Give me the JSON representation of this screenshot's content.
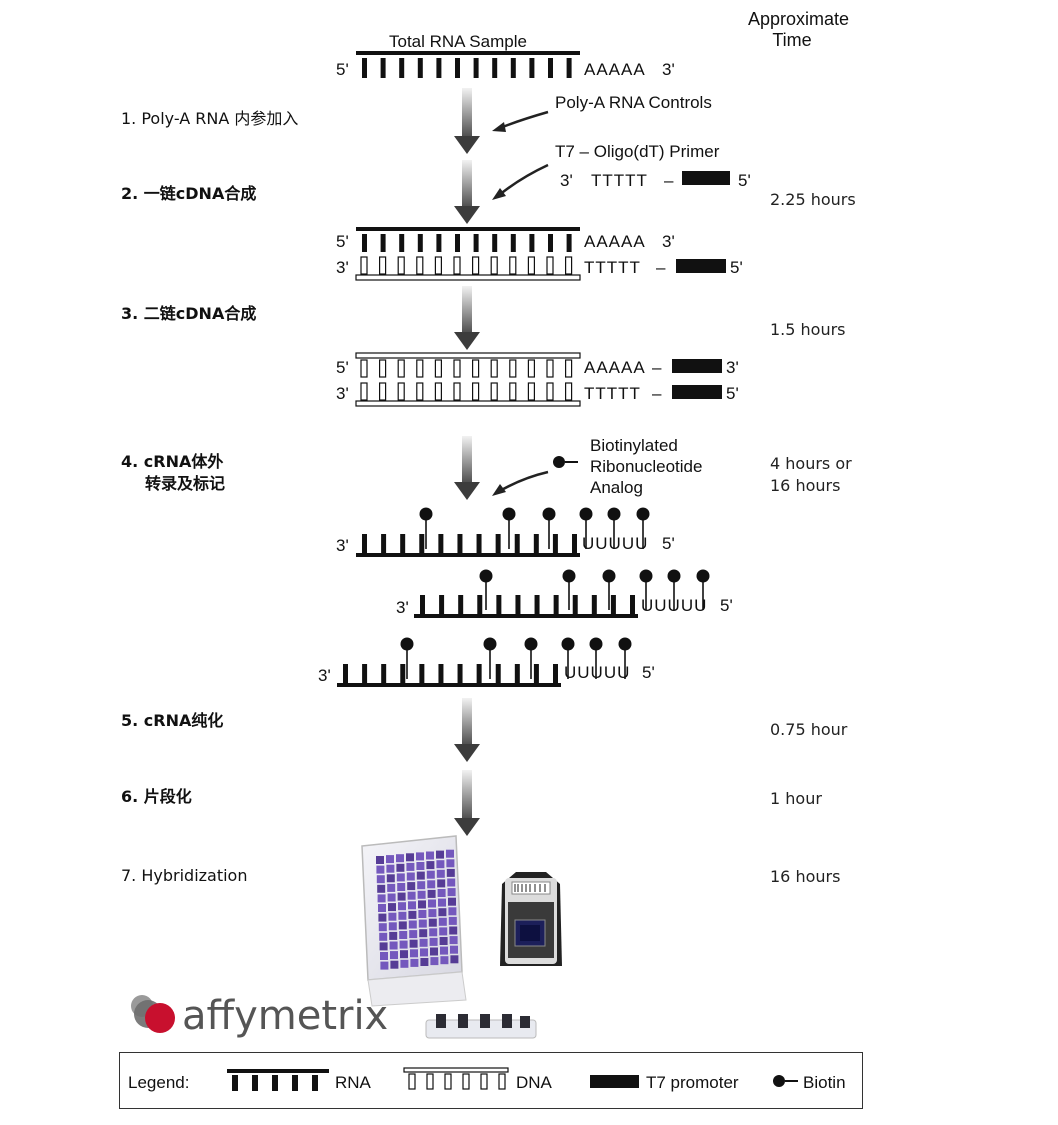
{
  "header": {
    "time_line1": "Approximate",
    "time_line2": "Time"
  },
  "sample_title": "Total RNA Sample",
  "ends": {
    "five": "5'",
    "three": "3'"
  },
  "sequences": {
    "polyA": "AAAAA",
    "polyT": "TTTTT",
    "polyU": "UUUUU",
    "dash": "–"
  },
  "annotations": {
    "polyA_controls": "Poly-A RNA Controls",
    "t7_primer": "T7 – Oligo(dT) Primer",
    "biotin_line1": "Biotinylated",
    "biotin_line2": "Ribonucleotide",
    "biotin_line3": "Analog"
  },
  "steps": [
    {
      "label": "1. Poly-A RNA 内参加入",
      "time": ""
    },
    {
      "label": "2.  一链cDNA合成",
      "time": "2.25 hours"
    },
    {
      "label": "3. 二链cDNA合成",
      "time": "1.5 hours"
    },
    {
      "label": "4.  cRNA体外",
      "label2": "转录及标记",
      "time": "4 hours or",
      "time2": "16 hours"
    },
    {
      "label": "5.  cRNA纯化",
      "time": "0.75 hour"
    },
    {
      "label": "6. 片段化",
      "time": "1 hour"
    },
    {
      "label": "7. Hybridization",
      "time": "16 hours"
    }
  ],
  "logo": {
    "text": "affymetrix"
  },
  "legend": {
    "title": "Legend:",
    "rna": "RNA",
    "dna": "DNA",
    "t7": "T7 promoter",
    "biotin": "Biotin"
  },
  "colors": {
    "ink": "#111111",
    "arrow_gradient_top": "#e8e8e8",
    "arrow_gradient_bottom": "#555555",
    "logo_red": "#c8102e",
    "logo_gray": "#666666",
    "plate_purple": "#5a3fa0"
  }
}
